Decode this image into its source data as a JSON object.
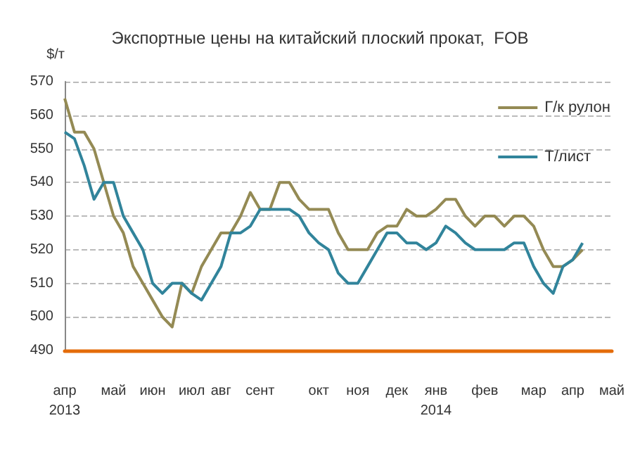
{
  "chart_data": {
    "type": "line",
    "title": "Экспортные цены на китайский плоский прокат,  FOB",
    "ylabel": "$/т",
    "categories": [
      "апр\n2013",
      null,
      null,
      null,
      null,
      "май",
      null,
      null,
      null,
      "июн",
      null,
      null,
      null,
      "июл",
      null,
      null,
      "авг",
      null,
      null,
      null,
      "сент",
      null,
      null,
      null,
      null,
      null,
      "окт",
      null,
      null,
      null,
      "ноя",
      null,
      null,
      null,
      "дек",
      null,
      null,
      null,
      "янв\n2014",
      null,
      null,
      null,
      null,
      "фев",
      null,
      null,
      null,
      null,
      "мар",
      null,
      null,
      null,
      "апр",
      null,
      null,
      null,
      "май"
    ],
    "series": [
      {
        "name": "Г/к рулон",
        "color": "#948a54",
        "values": [
          565,
          555,
          555,
          550,
          540,
          530,
          525,
          515,
          510,
          505,
          500,
          497,
          510,
          507,
          515,
          520,
          525,
          525,
          530,
          537,
          532,
          532,
          540,
          540,
          535,
          532,
          532,
          532,
          525,
          520,
          520,
          520,
          525,
          527,
          527,
          532,
          530,
          530,
          532,
          535,
          535,
          530,
          527,
          530,
          530,
          527,
          530,
          530,
          527,
          520,
          515,
          515,
          517,
          520,
          null,
          null,
          null
        ]
      },
      {
        "name": "Т/лист",
        "color": "#31849b",
        "values": [
          555,
          553,
          545,
          535,
          540,
          540,
          530,
          525,
          520,
          510,
          507,
          510,
          510,
          507,
          505,
          510,
          515,
          525,
          525,
          527,
          532,
          532,
          532,
          532,
          530,
          525,
          522,
          520,
          513,
          510,
          510,
          515,
          520,
          525,
          525,
          522,
          522,
          520,
          522,
          527,
          525,
          522,
          520,
          520,
          520,
          520,
          522,
          522,
          515,
          510,
          507,
          515,
          517,
          522,
          null,
          null,
          null
        ]
      }
    ],
    "ylim": [
      490,
      570
    ],
    "yticks": [
      490,
      500,
      510,
      520,
      530,
      540,
      550,
      560,
      570
    ],
    "grid": "y",
    "legend": "top right",
    "marker": "none",
    "line_style": "solid"
  }
}
